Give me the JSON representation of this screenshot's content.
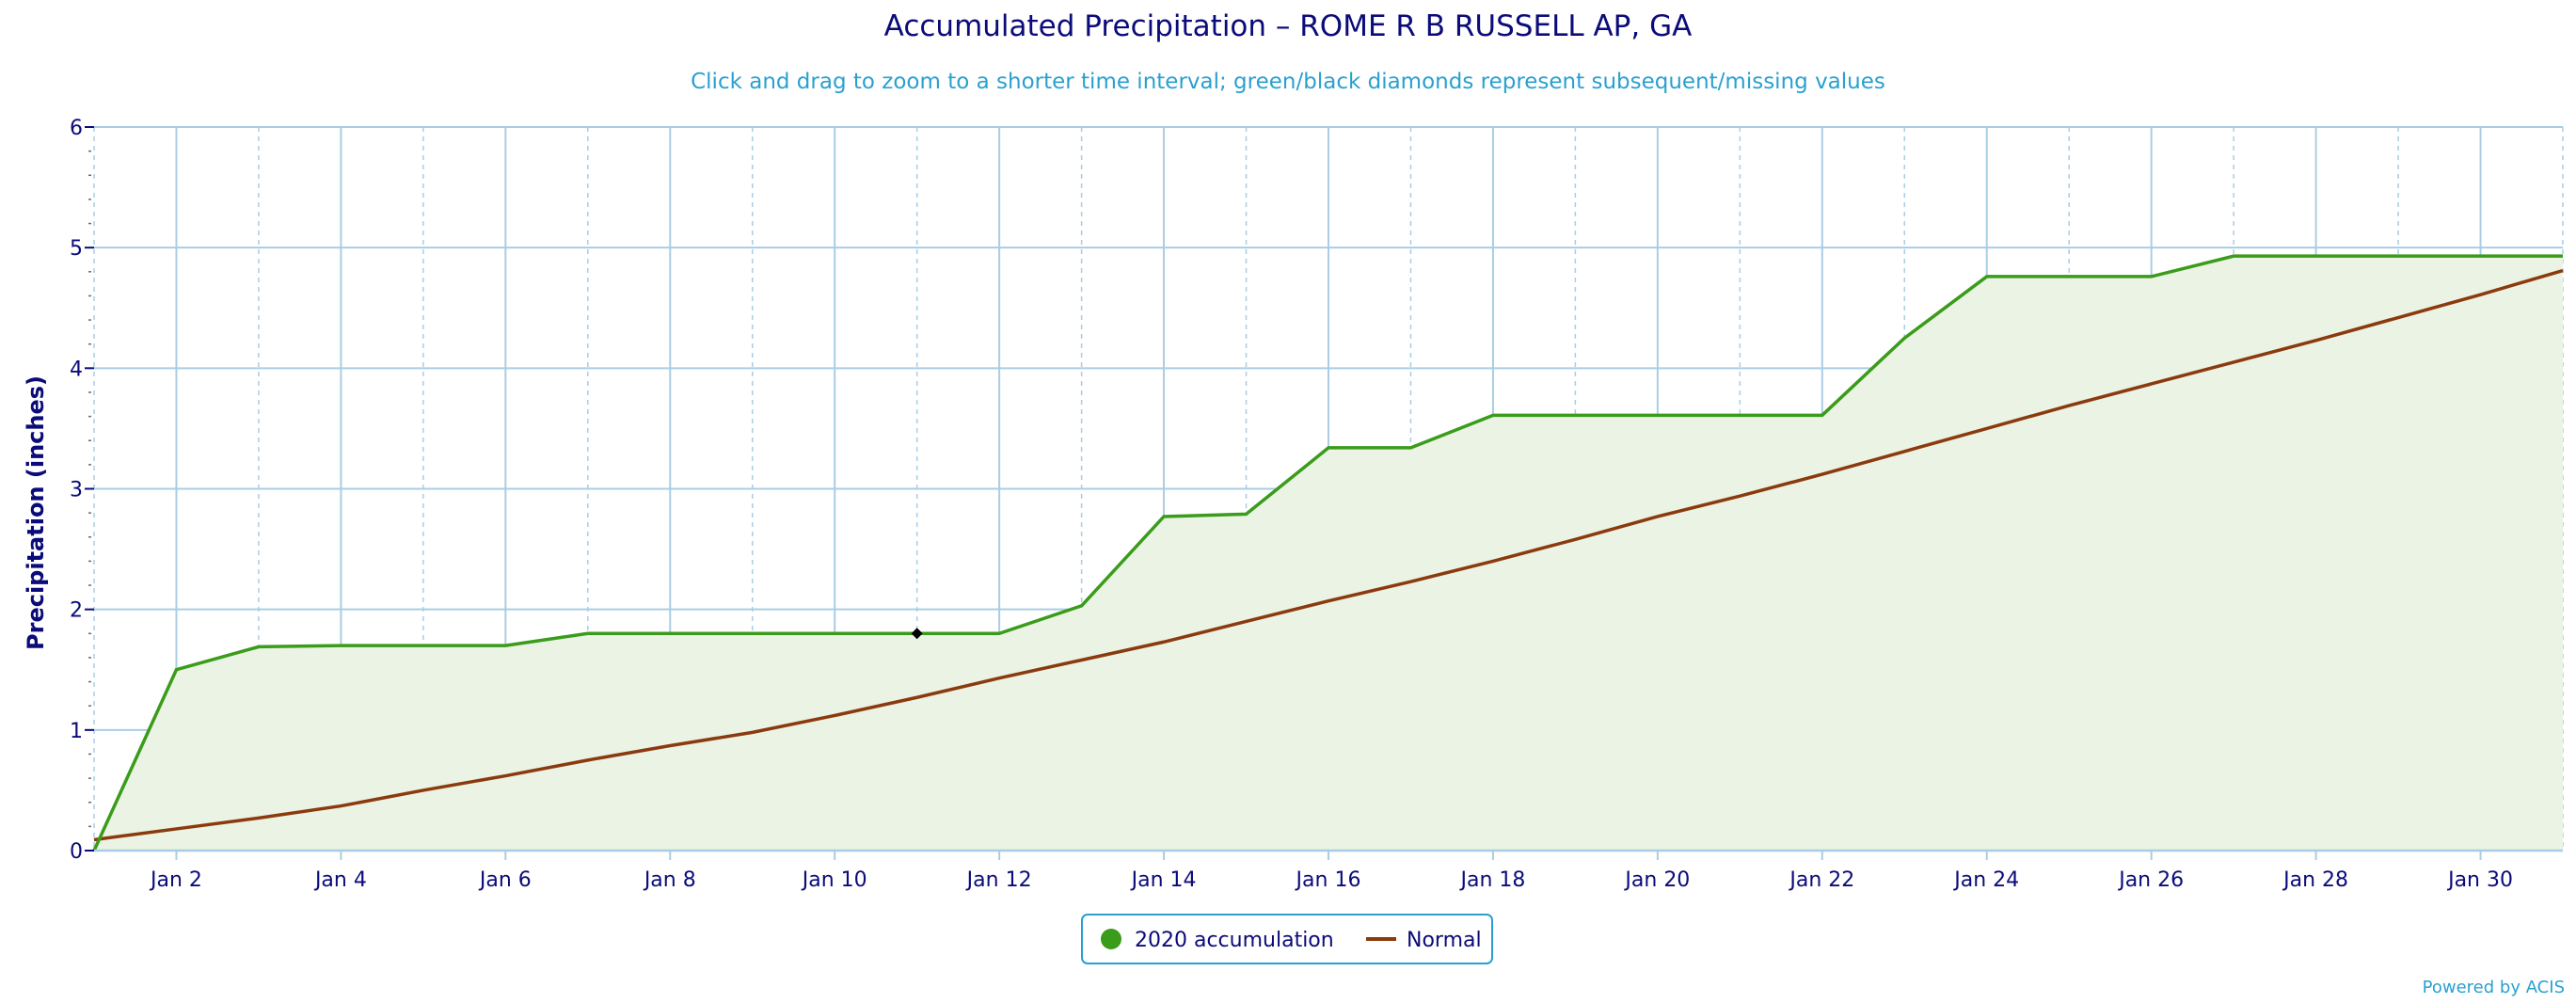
{
  "chart_data": {
    "type": "area",
    "title": "Accumulated Precipitation – ROME R B RUSSELL AP, GA",
    "subtitle": "Click and drag to zoom to a shorter time interval; green/black diamonds represent subsequent/missing values",
    "ylabel": "Precipitation (inches)",
    "xlabel": "",
    "xlim": [
      1,
      31
    ],
    "ylim": [
      0,
      6
    ],
    "x_tick_values": [
      2,
      4,
      6,
      8,
      10,
      12,
      14,
      16,
      18,
      20,
      22,
      24,
      26,
      28,
      30
    ],
    "x_tick_labels": [
      "Jan 2",
      "Jan 4",
      "Jan 6",
      "Jan 8",
      "Jan 10",
      "Jan 12",
      "Jan 14",
      "Jan 16",
      "Jan 18",
      "Jan 20",
      "Jan 22",
      "Jan 24",
      "Jan 26",
      "Jan 28",
      "Jan 30"
    ],
    "y_ticks": [
      0,
      1,
      2,
      3,
      4,
      5,
      6
    ],
    "grid": true,
    "legend_position": "bottom-center",
    "series": [
      {
        "name": "2020 accumulation",
        "type": "area",
        "color": "#3a9c1a",
        "fill": "#eaf3e4",
        "x": [
          1,
          2,
          3,
          4,
          5,
          6,
          7,
          8,
          9,
          10,
          11,
          12,
          13,
          14,
          15,
          16,
          17,
          18,
          19,
          20,
          21,
          22,
          23,
          24,
          25,
          26,
          27,
          28,
          29,
          30,
          31
        ],
        "values": [
          0.0,
          1.5,
          1.69,
          1.7,
          1.7,
          1.7,
          1.8,
          1.8,
          1.8,
          1.8,
          1.8,
          1.8,
          2.03,
          2.77,
          2.79,
          3.34,
          3.34,
          3.61,
          3.61,
          3.61,
          3.61,
          3.61,
          4.25,
          4.76,
          4.76,
          4.76,
          4.93,
          4.93,
          4.93,
          4.93,
          4.93
        ]
      },
      {
        "name": "Normal",
        "type": "line",
        "color": "#8b3a0e",
        "x": [
          1,
          2,
          3,
          4,
          5,
          6,
          7,
          8,
          9,
          10,
          11,
          12,
          13,
          14,
          15,
          16,
          17,
          18,
          19,
          20,
          21,
          22,
          23,
          24,
          25,
          26,
          27,
          28,
          29,
          30,
          31
        ],
        "values": [
          0.09,
          0.18,
          0.27,
          0.37,
          0.5,
          0.62,
          0.75,
          0.87,
          0.98,
          1.12,
          1.27,
          1.43,
          1.58,
          1.73,
          1.9,
          2.07,
          2.23,
          2.4,
          2.58,
          2.77,
          2.94,
          3.12,
          3.31,
          3.5,
          3.69,
          3.87,
          4.05,
          4.23,
          4.42,
          4.61,
          4.81
        ]
      }
    ],
    "markers": [
      {
        "x": 11,
        "y": 1.8,
        "shape": "diamond",
        "color": "#000000"
      }
    ]
  },
  "legend": {
    "items": [
      {
        "label": "2020 accumulation",
        "symbol": "circle",
        "color": "#3a9c1a"
      },
      {
        "label": "Normal",
        "symbol": "line",
        "color": "#8b3a0e"
      }
    ],
    "border_color": "#2aa0d0"
  },
  "credit": "Powered by ACIS",
  "colors": {
    "title": "#0b0b7a",
    "subtitle": "#2aa0d0",
    "grid": "#a9cde4",
    "axis_text": "#0b0b7a"
  }
}
